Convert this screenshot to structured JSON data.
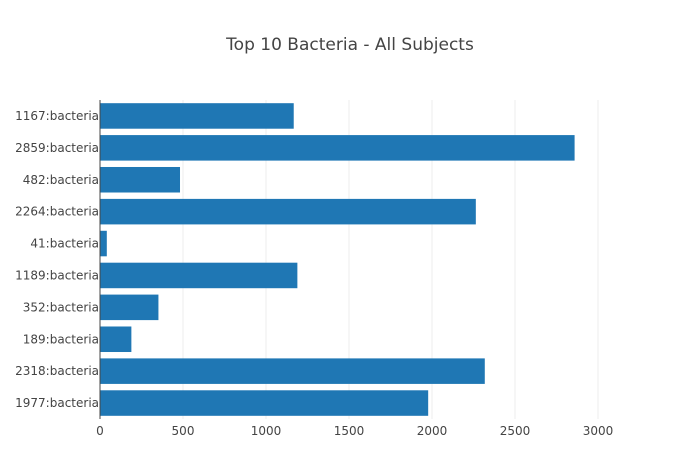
{
  "chart_data": {
    "type": "bar",
    "orientation": "horizontal",
    "title": "Top 10 Bacteria - All Subjects",
    "xlabel": "",
    "ylabel": "",
    "categories": [
      "1167:bacteria",
      "2859:bacteria",
      "482:bacteria",
      "2264:bacteria",
      "41:bacteria",
      "1189:bacteria",
      "352:bacteria",
      "189:bacteria",
      "2318:bacteria",
      "1977:bacteria"
    ],
    "values": [
      1167,
      2859,
      482,
      2264,
      41,
      1189,
      352,
      189,
      2318,
      1977
    ],
    "xlim": [
      0,
      3000
    ],
    "x_ticks": [
      "0",
      "500",
      "1000",
      "1500",
      "2000",
      "2500",
      "3000"
    ],
    "grid": true,
    "legend": false,
    "bar_color": "#1f77b4"
  }
}
